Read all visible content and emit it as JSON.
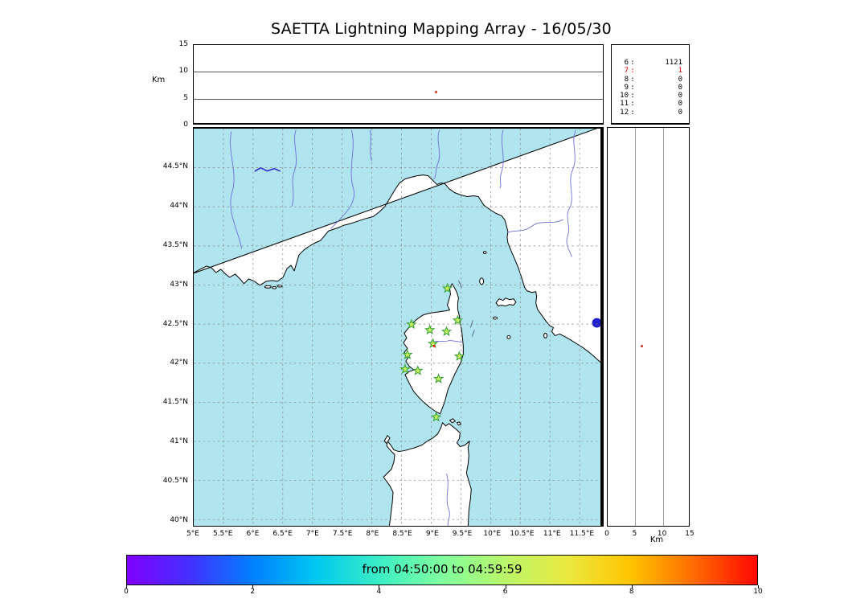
{
  "title": "SAETTA Lightning Mapping Array - 16/05/30",
  "colors": {
    "sea": "#b0e4ee",
    "land": "#ffffff",
    "coastline": "#000000",
    "river": "#6f6fd8",
    "lake": "#2020cc",
    "grid": "#888888",
    "station_fill": "#c8f060",
    "station_stroke": "#2f9e2f",
    "source_red": "#e03020",
    "highlight_red": "#e00000"
  },
  "axes": {
    "top_ylabel": "Km",
    "top_yticks": [
      "15",
      "10",
      "5",
      "0"
    ],
    "lat_ticks": [
      "44.5°N",
      "44°N",
      "43.5°N",
      "43°N",
      "42.5°N",
      "42°N",
      "41.5°N",
      "41°N",
      "40.5°N",
      "40°N"
    ],
    "lon_ticks": [
      "5°E",
      "5.5°E",
      "6°E",
      "6.5°E",
      "7°E",
      "7.5°E",
      "8°E",
      "8.5°E",
      "9°E",
      "9.5°E",
      "10°E",
      "10.5°E",
      "11°E",
      "11.5°E"
    ],
    "right_xticks": [
      "0",
      "5",
      "10",
      "15"
    ],
    "right_xlabel": "Km",
    "colorbar_ticks": [
      "0",
      "2",
      "4",
      "6",
      "8",
      "10"
    ]
  },
  "stats_panel": {
    "rows": [
      {
        "label": "6",
        "value": "1121",
        "highlight": false
      },
      {
        "label": "7",
        "value": "1",
        "highlight": true
      },
      {
        "label": "8",
        "value": "0",
        "highlight": false
      },
      {
        "label": "9",
        "value": "0",
        "highlight": false
      },
      {
        "label": "10",
        "value": "0",
        "highlight": false
      },
      {
        "label": "11",
        "value": "0",
        "highlight": false
      },
      {
        "label": "12",
        "value": "0",
        "highlight": false
      }
    ]
  },
  "colorbar": {
    "label": "from 04:50:00 to 04:59:59"
  },
  "chart_data": [
    {
      "type": "scatter",
      "panel": "altitude-vs-longitude (top strip)",
      "ylabel": "Km",
      "ylim": [
        0,
        15
      ],
      "yticks": [
        0,
        5,
        10,
        15
      ],
      "xlim": [
        5.0,
        11.85
      ],
      "grid": "horizontal lines at 5 and 10 km",
      "series": [
        {
          "name": "lightning sources",
          "marker": "dot",
          "color": "#e03020",
          "points": [
            {
              "x": 9.05,
              "y": 6.2
            }
          ]
        }
      ]
    },
    {
      "type": "scatter",
      "panel": "plan-view map (Corsica region)",
      "xlim": [
        5.0,
        11.85
      ],
      "ylim": [
        39.92,
        45.0
      ],
      "xticks_deg_E": [
        5,
        5.5,
        6,
        6.5,
        7,
        7.5,
        8,
        8.5,
        9,
        9.5,
        10,
        10.5,
        11,
        11.5
      ],
      "yticks_deg_N": [
        40,
        40.5,
        41,
        41.5,
        42,
        42.5,
        43,
        43.5,
        44,
        44.5
      ],
      "grid": "dashed graticule every 0.5 degree",
      "series": [
        {
          "name": "LMA stations",
          "marker": "green star",
          "points_lon_lat": [
            [
              9.272,
              42.956
            ],
            [
              8.667,
              42.496
            ],
            [
              8.976,
              42.424
            ],
            [
              9.258,
              42.404
            ],
            [
              9.446,
              42.547
            ],
            [
              9.03,
              42.25
            ],
            [
              8.6,
              42.108
            ],
            [
              9.473,
              42.087
            ],
            [
              8.56,
              41.923
            ],
            [
              8.774,
              41.903
            ],
            [
              9.124,
              41.8
            ],
            [
              9.084,
              41.31
            ]
          ]
        },
        {
          "name": "lightning sources",
          "marker": "red dot",
          "points_lon_lat": [
            [
              9.05,
              42.22
            ]
          ]
        }
      ],
      "map_features": [
        "French and Italian coastline",
        "Corsica",
        "northern Sardinia",
        "Elba and small Tuscan islands",
        "rivers",
        "Lake Bolsena (blue disc at right edge)"
      ]
    },
    {
      "type": "scatter",
      "panel": "altitude-vs-latitude (right strip)",
      "xlabel": "Km",
      "xlim": [
        0,
        15
      ],
      "xticks": [
        0,
        5,
        10,
        15
      ],
      "ylim": [
        39.92,
        45.0
      ],
      "grid": "vertical lines at 5 and 10 km",
      "series": [
        {
          "name": "lightning sources",
          "marker": "dot",
          "color": "#e03020",
          "points": [
            {
              "x": 6.2,
              "y": 42.22
            }
          ]
        }
      ]
    },
    {
      "type": "table",
      "panel": "sources per number of contributing stations",
      "rows": [
        {
          "stations": 6,
          "sources": 1121
        },
        {
          "stations": 7,
          "sources": 1
        },
        {
          "stations": 8,
          "sources": 0
        },
        {
          "stations": 9,
          "sources": 0
        },
        {
          "stations": 10,
          "sources": 0
        },
        {
          "stations": 11,
          "sources": 0
        },
        {
          "stations": 12,
          "sources": 0
        }
      ]
    },
    {
      "type": "colorbar",
      "panel": "time colorbar",
      "label": "from 04:50:00 to 04:59:59",
      "ticks": [
        0,
        2,
        4,
        6,
        8,
        10
      ],
      "colormap": "rainbow (violet to red)",
      "legend_position": "bottom"
    }
  ]
}
